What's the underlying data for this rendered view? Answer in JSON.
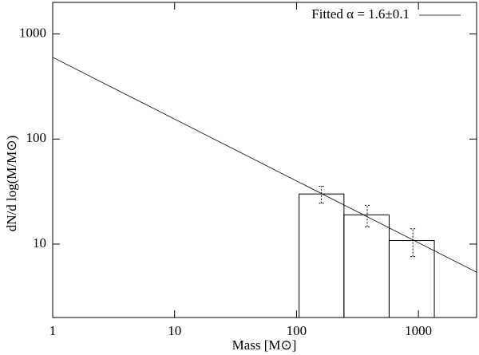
{
  "chart_data": {
    "type": "histogram",
    "xlabel": "Mass [M⊙]",
    "ylabel": "dN/d log(M/M⊙)",
    "xscale": "log",
    "yscale": "log",
    "xlim": [
      1,
      3000
    ],
    "ylim": [
      2,
      2000
    ],
    "xticks": [
      1,
      10,
      100,
      1000
    ],
    "yticks": [
      10,
      100,
      1000
    ],
    "bins": [
      105,
      245,
      575,
      1350
    ],
    "values": [
      30,
      19,
      10.8
    ],
    "color": "#000000",
    "errors": [
      5.5,
      4.4,
      3.2
    ],
    "error_x": [
      160,
      380,
      900
    ],
    "fit": {
      "name": "Fitted α = 1.6±0.1",
      "x": [
        1,
        3000
      ],
      "values": [
        600,
        5.4
      ],
      "color": "#000000"
    },
    "legend": "upper right"
  }
}
